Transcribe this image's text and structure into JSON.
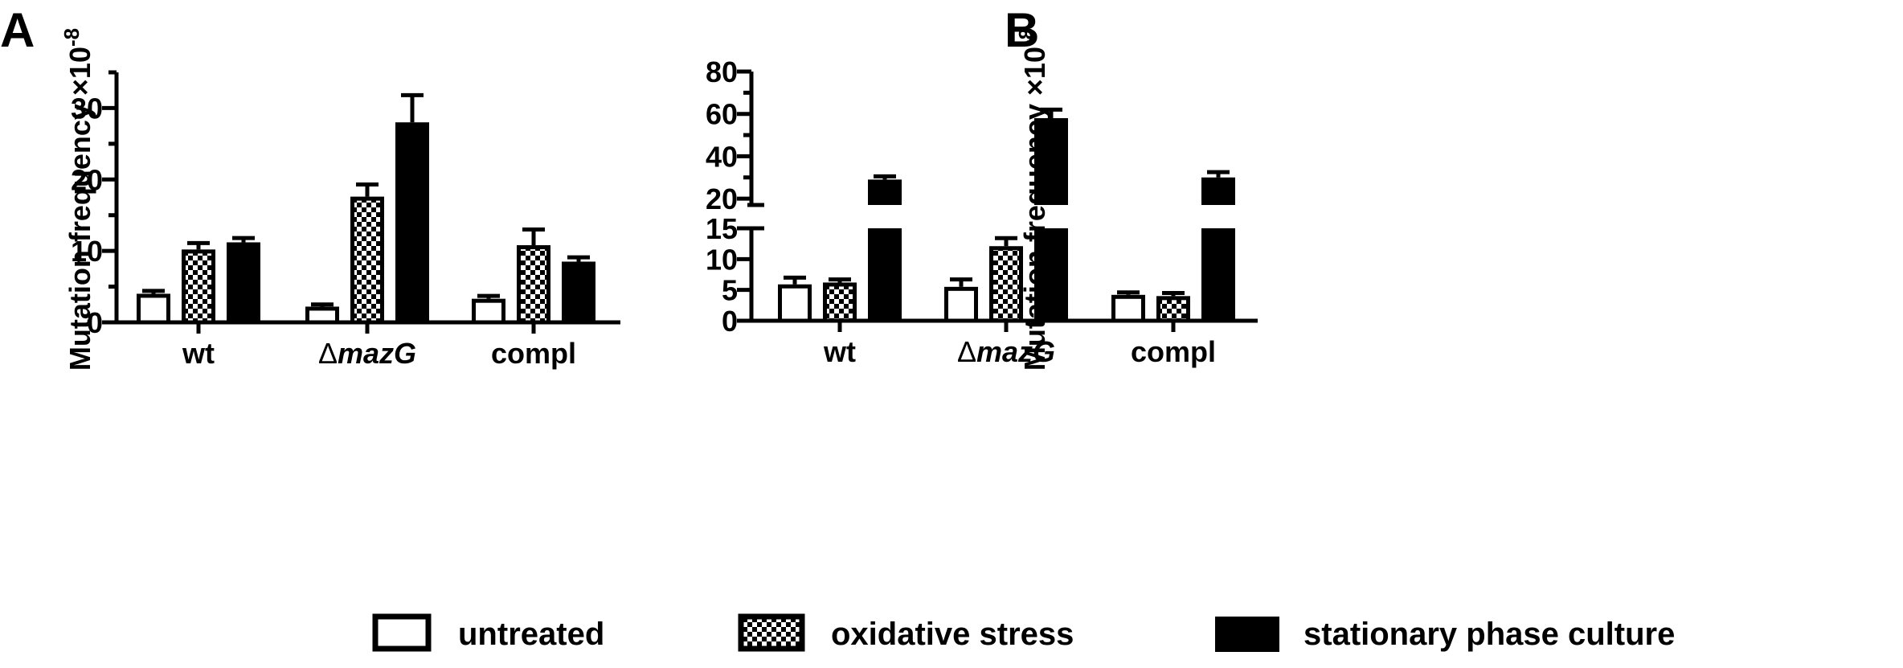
{
  "legend": [
    {
      "label": "untreated",
      "fill": "white"
    },
    {
      "label": "oxidative stress",
      "fill": "checker"
    },
    {
      "label": "stationary phase culture",
      "fill": "black"
    }
  ],
  "colors": {
    "ink": "#000000",
    "background": "#ffffff"
  },
  "chart_data": [
    {
      "panel": "A",
      "type": "bar",
      "ylabel": "Mutation frequency ×10",
      "ylabel_exponent": "-8",
      "categories": [
        {
          "prefix": "",
          "text": "wt",
          "italic": false
        },
        {
          "prefix": "Δ",
          "text": "mazG",
          "italic": true
        },
        {
          "prefix": "",
          "text": "compl",
          "italic": false
        }
      ],
      "series": [
        {
          "name": "untreated",
          "values": [
            4.0,
            2.2,
            3.3
          ],
          "errors": [
            0.4,
            0.3,
            0.4
          ]
        },
        {
          "name": "oxidative stress",
          "values": [
            10.2,
            17.6,
            10.8
          ],
          "errors": [
            0.9,
            1.7,
            2.2
          ]
        },
        {
          "name": "stationary phase culture",
          "values": [
            11.2,
            28.0,
            8.5
          ],
          "errors": [
            0.6,
            3.8,
            0.6
          ]
        }
      ],
      "ylim": [
        0,
        35
      ],
      "yticks": [
        0,
        10,
        20,
        30
      ],
      "minor_yticks": [
        5,
        15,
        25,
        35
      ],
      "axis_break": null,
      "grid": false
    },
    {
      "panel": "B",
      "type": "bar",
      "ylabel": "Mutation frequency ×10",
      "ylabel_exponent": "-8",
      "categories": [
        {
          "prefix": "",
          "text": "wt",
          "italic": false
        },
        {
          "prefix": "Δ",
          "text": "mazG",
          "italic": true
        },
        {
          "prefix": "",
          "text": "compl",
          "italic": false
        }
      ],
      "series": [
        {
          "name": "untreated",
          "values": [
            5.9,
            5.5,
            4.2
          ],
          "errors": [
            1.1,
            1.2,
            0.4
          ]
        },
        {
          "name": "oxidative stress",
          "values": [
            6.2,
            12.1,
            4.0
          ],
          "errors": [
            0.5,
            1.3,
            0.5
          ]
        },
        {
          "name": "stationary phase culture",
          "values": [
            29,
            58,
            30
          ],
          "errors": [
            1.5,
            4,
            2.5
          ]
        }
      ],
      "ylim": [
        0,
        80
      ],
      "axis_break": [
        15,
        17
      ],
      "yticks": [
        0,
        5,
        10,
        15,
        20,
        40,
        60,
        80
      ],
      "minor_yticks": [
        30,
        50,
        70
      ],
      "grid": false
    }
  ]
}
